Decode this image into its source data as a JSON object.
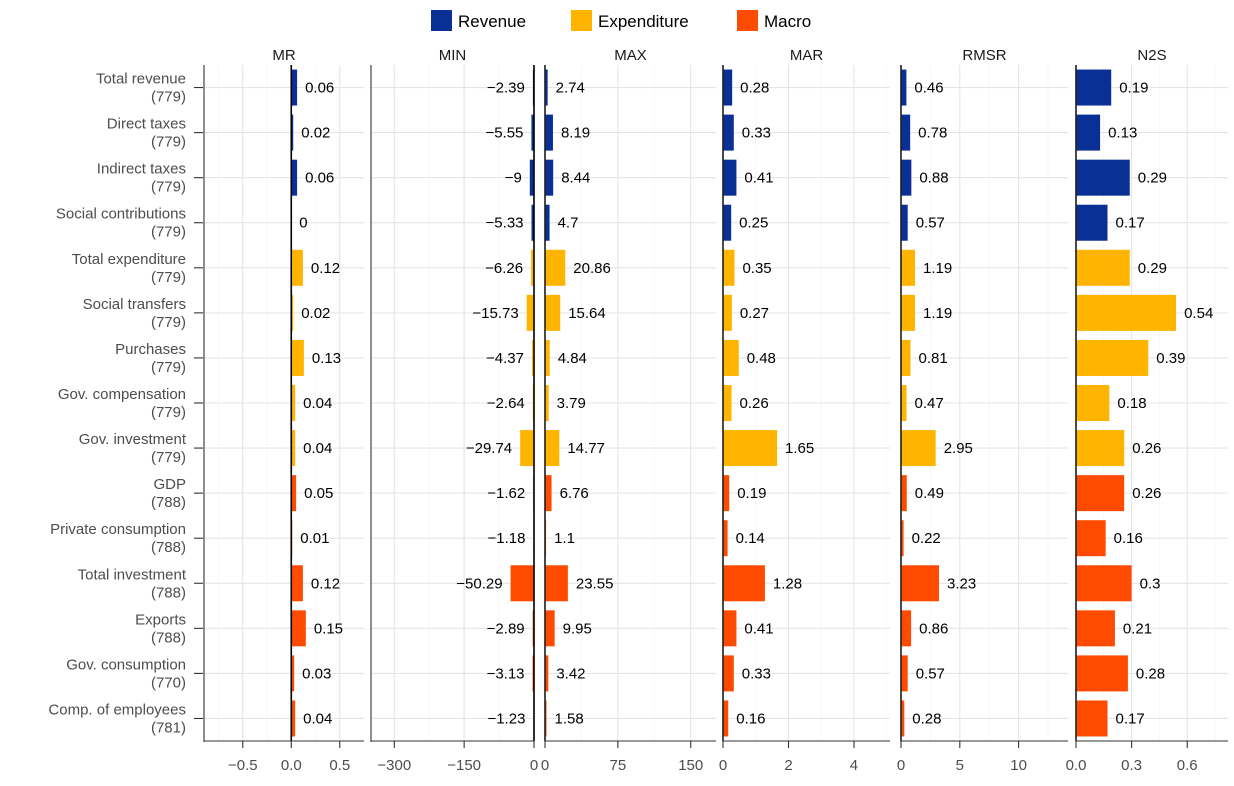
{
  "chart_data": {
    "type": "bar",
    "orientation": "horizontal",
    "legend": {
      "placement": "top",
      "entries": [
        {
          "name": "Revenue",
          "color": "#0a3096"
        },
        {
          "name": "Expenditure",
          "color": "#ffb400"
        },
        {
          "name": "Macro",
          "color": "#ff4b00"
        }
      ]
    },
    "categories": [
      {
        "label": "Total revenue",
        "count": "(779)",
        "group": "Revenue"
      },
      {
        "label": "Direct taxes",
        "count": "(779)",
        "group": "Revenue"
      },
      {
        "label": "Indirect taxes",
        "count": "(779)",
        "group": "Revenue"
      },
      {
        "label": "Social contributions",
        "count": "(779)",
        "group": "Revenue"
      },
      {
        "label": "Total expenditure",
        "count": "(779)",
        "group": "Expenditure"
      },
      {
        "label": "Social transfers",
        "count": "(779)",
        "group": "Expenditure"
      },
      {
        "label": "Purchases",
        "count": "(779)",
        "group": "Expenditure"
      },
      {
        "label": "Gov. compensation",
        "count": "(779)",
        "group": "Expenditure"
      },
      {
        "label": "Gov. investment",
        "count": "(779)",
        "group": "Expenditure"
      },
      {
        "label": "GDP",
        "count": "(788)",
        "group": "Macro"
      },
      {
        "label": "Private consumption",
        "count": "(788)",
        "group": "Macro"
      },
      {
        "label": "Total investment",
        "count": "(788)",
        "group": "Macro"
      },
      {
        "label": "Exports",
        "count": "(788)",
        "group": "Macro"
      },
      {
        "label": "Gov. consumption",
        "count": "(770)",
        "group": "Macro"
      },
      {
        "label": "Comp. of employees",
        "count": "(781)",
        "group": "Macro"
      }
    ],
    "panels": [
      {
        "title": "MR",
        "xlim": [
          -0.9,
          0.75
        ],
        "ticks": [
          -0.5,
          0.0,
          0.5
        ],
        "tick_labels": [
          "−0.5",
          "0.0",
          "0.5"
        ],
        "minor_ticks": [
          -0.75,
          -0.25,
          0.25
        ],
        "values": [
          0.06,
          0.02,
          0.06,
          0,
          0.12,
          0.02,
          0.13,
          0.04,
          0.04,
          0.05,
          0.01,
          0.12,
          0.15,
          0.03,
          0.04
        ],
        "labels": [
          "0.06",
          "0.02",
          "0.06",
          "0",
          "0.12",
          "0.02",
          "0.13",
          "0.04",
          "0.04",
          "0.05",
          "0.01",
          "0.12",
          "0.15",
          "0.03",
          "0.04"
        ]
      },
      {
        "title": "MIN",
        "xlim": [
          -350,
          0
        ],
        "ticks": [
          -300,
          -150,
          0
        ],
        "tick_labels": [
          "−300",
          "−150",
          "0"
        ],
        "minor_ticks": [
          -225,
          -75
        ],
        "values": [
          -2.39,
          -5.55,
          -9,
          -5.33,
          -6.26,
          -15.73,
          -4.37,
          -2.64,
          -29.74,
          -1.62,
          -1.18,
          -50.29,
          -2.89,
          -3.13,
          -1.23
        ],
        "labels": [
          "−2.39",
          "−5.55",
          "−9",
          "−5.33",
          "−6.26",
          "−15.73",
          "−4.37",
          "−2.64",
          "−29.74",
          "−1.62",
          "−1.18",
          "−50.29",
          "−2.89",
          "−3.13",
          "−1.23"
        ]
      },
      {
        "title": "MAX",
        "xlim": [
          0,
          176
        ],
        "ticks": [
          0,
          75,
          150
        ],
        "tick_labels": [
          "0",
          "75",
          "150"
        ],
        "minor_ticks": [
          37.5,
          112.5
        ],
        "values": [
          2.74,
          8.19,
          8.44,
          4.7,
          20.86,
          15.64,
          4.84,
          3.79,
          14.77,
          6.76,
          1.1,
          23.55,
          9.95,
          3.42,
          1.58
        ],
        "labels": [
          "2.74",
          "8.19",
          "8.44",
          "4.7",
          "20.86",
          "15.64",
          "4.84",
          "3.79",
          "14.77",
          "6.76",
          "1.1",
          "23.55",
          "9.95",
          "3.42",
          "1.58"
        ]
      },
      {
        "title": "MAR",
        "xlim": [
          0,
          5.1
        ],
        "ticks": [
          0,
          2,
          4
        ],
        "tick_labels": [
          "0",
          "2",
          "4"
        ],
        "minor_ticks": [
          1,
          3,
          5
        ],
        "values": [
          0.28,
          0.33,
          0.41,
          0.25,
          0.35,
          0.27,
          0.48,
          0.26,
          1.65,
          0.19,
          0.14,
          1.28,
          0.41,
          0.33,
          0.16
        ],
        "labels": [
          "0.28",
          "0.33",
          "0.41",
          "0.25",
          "0.35",
          "0.27",
          "0.48",
          "0.26",
          "1.65",
          "0.19",
          "0.14",
          "1.28",
          "0.41",
          "0.33",
          "0.16"
        ]
      },
      {
        "title": "RMSR",
        "xlim": [
          0,
          14.2
        ],
        "ticks": [
          0,
          5,
          10
        ],
        "tick_labels": [
          "0",
          "5",
          "10"
        ],
        "minor_ticks": [
          2.5,
          7.5,
          12.5
        ],
        "values": [
          0.46,
          0.78,
          0.88,
          0.57,
          1.19,
          1.19,
          0.81,
          0.47,
          2.95,
          0.49,
          0.22,
          3.23,
          0.86,
          0.57,
          0.28
        ],
        "labels": [
          "0.46",
          "0.78",
          "0.88",
          "0.57",
          "1.19",
          "1.19",
          "0.81",
          "0.47",
          "2.95",
          "0.49",
          "0.22",
          "3.23",
          "0.86",
          "0.57",
          "0.28"
        ]
      },
      {
        "title": "N2S",
        "xlim": [
          0,
          0.82
        ],
        "ticks": [
          0.0,
          0.3,
          0.6
        ],
        "tick_labels": [
          "0.0",
          "0.3",
          "0.6"
        ],
        "minor_ticks": [
          0.15,
          0.45,
          0.75
        ],
        "values": [
          0.19,
          0.13,
          0.29,
          0.17,
          0.29,
          0.54,
          0.39,
          0.18,
          0.26,
          0.26,
          0.16,
          0.3,
          0.21,
          0.28,
          0.17
        ],
        "labels": [
          "0.19",
          "0.13",
          "0.29",
          "0.17",
          "0.29",
          "0.54",
          "0.39",
          "0.18",
          "0.26",
          "0.26",
          "0.16",
          "0.3",
          "0.21",
          "0.28",
          "0.17"
        ]
      }
    ],
    "grid": true,
    "xlabel": "",
    "ylabel": ""
  }
}
